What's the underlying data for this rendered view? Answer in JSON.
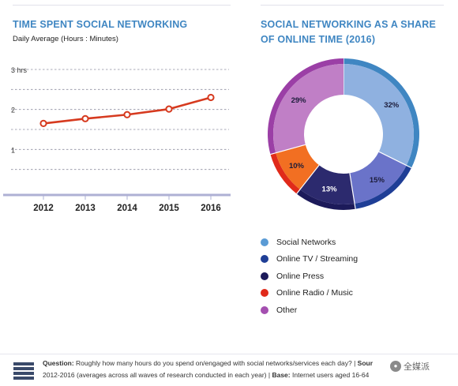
{
  "left_panel": {
    "title": "TIME SPENT SOCIAL NETWORKING",
    "subtitle": "Daily Average (Hours : Minutes)"
  },
  "right_panel": {
    "title_line1": "SOCIAL NETWORKING AS A SHARE",
    "title_line2": "OF ONLINE TIME (2016)"
  },
  "chart_data": [
    {
      "type": "line",
      "title": "TIME SPENT SOCIAL NETWORKING",
      "subtitle": "Daily Average (Hours : Minutes)",
      "categories": [
        "2012",
        "2013",
        "2014",
        "2015",
        "2016"
      ],
      "series": [
        {
          "values": [
            1.65,
            1.77,
            1.87,
            2.01,
            2.3
          ],
          "color": "#d63a1f"
        }
      ],
      "y_ticks": [
        {
          "value": 3,
          "label": "3 hrs"
        },
        {
          "value": 2,
          "label": "2"
        },
        {
          "value": 1,
          "label": "1"
        }
      ],
      "ylim": [
        0,
        3.3
      ],
      "grid": "dashed horizontal"
    },
    {
      "type": "pie",
      "style": "donut",
      "title": "SOCIAL NETWORKING AS A SHARE OF ONLINE TIME (2016)",
      "slices": [
        {
          "label": "Social Networks",
          "value": 32,
          "display": "32%",
          "color": "#8fb1e0"
        },
        {
          "label": "Online TV / Streaming",
          "value": 15,
          "display": "15%",
          "color": "#6a73c9"
        },
        {
          "label": "Online Press",
          "value": 13,
          "display": "13%",
          "color": "#2c2a6e"
        },
        {
          "label": "Online Radio / Music",
          "value": 10,
          "display": "10%",
          "color": "#f26f22"
        },
        {
          "label": "Other",
          "value": 29,
          "display": "29%",
          "color": "#c07fc6"
        }
      ],
      "ring_colors": [
        "#3f86c2",
        "#1f3e96",
        "#1c1a5a",
        "#e02a1a",
        "#9b3fa6"
      ]
    }
  ],
  "legend": [
    {
      "label": "Social Networks",
      "color": "#5a9bd5"
    },
    {
      "label": "Online TV / Streaming",
      "color": "#1f3e96"
    },
    {
      "label": "Online Press",
      "color": "#1c1a5a"
    },
    {
      "label": "Online Radio / Music",
      "color": "#e02a1a"
    },
    {
      "label": "Other",
      "color": "#a44fb0"
    }
  ],
  "footer": {
    "question_label": "Question:",
    "question_text": "Roughly how many hours do you spend on/engaged with social networks/services each day?",
    "source_label": "Sour",
    "line2_prefix": "2012-2016 (averages across all waves of research conducted in each year)",
    "base_label": "Base:",
    "base_text": "Internet users aged 16-64"
  },
  "watermark": {
    "text": "全媒派"
  }
}
